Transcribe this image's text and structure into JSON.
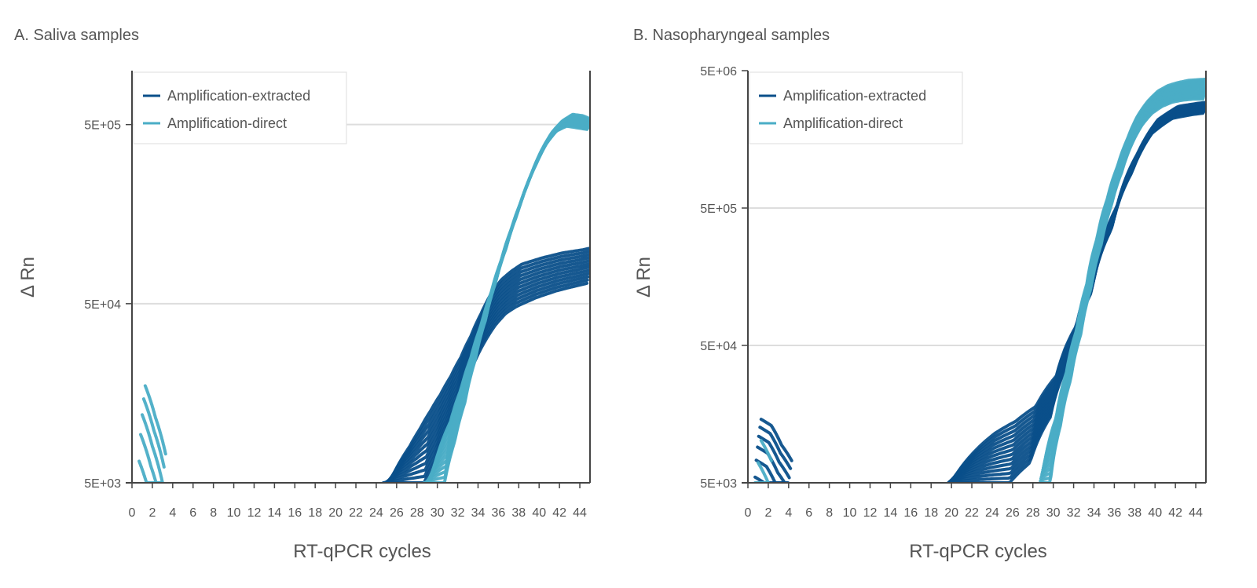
{
  "colors": {
    "extracted": "#0a4f8a",
    "direct": "#4aadc6",
    "grid": "#dddddd",
    "axis": "#444444",
    "legend_border": "#dddddd"
  },
  "chart_data": [
    {
      "type": "line",
      "title": "A. Saliva samples",
      "xlabel": "RT-qPCR cycles",
      "ylabel": "Δ Rn",
      "xlim": [
        0,
        45
      ],
      "ylim": [
        5000,
        1000000
      ],
      "yscale": "log",
      "xticks": [
        0,
        2,
        4,
        6,
        8,
        10,
        12,
        14,
        16,
        18,
        20,
        22,
        24,
        26,
        28,
        30,
        32,
        34,
        36,
        38,
        40,
        42,
        44
      ],
      "yticks": [
        5000,
        50000,
        500000
      ],
      "ytick_labels": [
        "5E+03",
        "5E+04",
        "5E+05"
      ],
      "grid": "horizontal",
      "legend": {
        "position": "top-left",
        "entries": [
          "Amplification-extracted",
          "Amplification-direct"
        ]
      },
      "series": [
        {
          "name": "Amplification-extracted",
          "color_key": "extracted",
          "count": 12,
          "x": [
            25,
            26,
            27,
            28,
            29,
            30,
            31,
            32,
            33,
            34,
            35,
            36,
            37,
            38,
            40,
            42,
            44,
            45
          ],
          "y": [
            5000,
            5600,
            6500,
            8000,
            10000,
            13000,
            17000,
            22000,
            29000,
            39000,
            50000,
            60000,
            68000,
            74000,
            80000,
            85000,
            89000,
            91000
          ],
          "y_min": [
            5000,
            5000,
            5000,
            5000,
            5000,
            6500,
            9000,
            12000,
            17000,
            24000,
            31000,
            38000,
            44000,
            48000,
            54000,
            59000,
            63000,
            65000
          ],
          "y_max": [
            5000,
            6500,
            8000,
            10000,
            12500,
            15500,
            19500,
            25000,
            33000,
            44000,
            57000,
            68000,
            76000,
            83000,
            90000,
            96000,
            100000,
            103000
          ]
        },
        {
          "name": "Amplification-direct",
          "color_key": "direct",
          "count": 12,
          "x": [
            29,
            30,
            31,
            32,
            33,
            34,
            35,
            36,
            37,
            38,
            39,
            40,
            41,
            42,
            43,
            44,
            45
          ],
          "y": [
            5000,
            6500,
            9500,
            14500,
            22000,
            34000,
            52000,
            80000,
            120000,
            175000,
            250000,
            340000,
            430000,
            500000,
            540000,
            530000,
            505000
          ],
          "y_min": [
            5000,
            5000,
            5000,
            8500,
            14000,
            24000,
            40000,
            65000,
            100000,
            150000,
            220000,
            300000,
            390000,
            460000,
            490000,
            480000,
            470000
          ],
          "y_max": [
            5000,
            8000,
            11000,
            16500,
            25000,
            38000,
            58000,
            88000,
            132000,
            190000,
            270000,
            365000,
            455000,
            525000,
            570000,
            560000,
            530000
          ]
        },
        {
          "name": "Amplification-direct (baseline)",
          "color_key": "direct",
          "count": 5,
          "legend": false,
          "x": [
            1,
            2,
            3
          ],
          "y": [
            12000,
            8000,
            5000
          ]
        }
      ]
    },
    {
      "type": "line",
      "title": "B. Nasopharyngeal samples",
      "xlabel": "RT-qPCR cycles",
      "ylabel": "Δ Rn",
      "xlim": [
        0,
        45
      ],
      "ylim": [
        5000,
        5000000
      ],
      "yscale": "log",
      "xticks": [
        0,
        2,
        4,
        6,
        8,
        10,
        12,
        14,
        16,
        18,
        20,
        22,
        24,
        26,
        28,
        30,
        32,
        34,
        36,
        38,
        40,
        42,
        44
      ],
      "yticks": [
        5000,
        50000,
        500000,
        5000000
      ],
      "ytick_labels": [
        "5E+03",
        "5E+04",
        "5E+05",
        "5E+06"
      ],
      "grid": "horizontal",
      "legend": {
        "position": "top-left",
        "entries": [
          "Amplification-extracted",
          "Amplification-direct"
        ]
      },
      "series": [
        {
          "name": "Amplification-extracted",
          "color_key": "extracted",
          "count": 14,
          "x": [
            20,
            22,
            24,
            26,
            28,
            30,
            32,
            34,
            36,
            38,
            40,
            42,
            44,
            45
          ],
          "y": [
            5000,
            7000,
            9000,
            11000,
            14000,
            25000,
            60000,
            160000,
            450000,
            1100000,
            2000000,
            2500000,
            2650000,
            2700000
          ],
          "y_min": [
            5000,
            5000,
            5000,
            5000,
            7000,
            15000,
            40000,
            120000,
            350000,
            900000,
            1750000,
            2250000,
            2400000,
            2450000
          ],
          "y_max": [
            5500,
            8500,
            11500,
            14000,
            18000,
            30000,
            70000,
            190000,
            520000,
            1250000,
            2200000,
            2750000,
            2900000,
            2950000
          ]
        },
        {
          "name": "Amplification-direct",
          "color_key": "direct",
          "count": 14,
          "x": [
            29,
            30,
            31,
            32,
            33,
            34,
            35,
            36,
            37,
            38,
            39,
            40,
            41,
            42,
            43,
            44,
            45
          ],
          "y": [
            5000,
            10000,
            22000,
            45000,
            95000,
            200000,
            400000,
            750000,
            1250000,
            1900000,
            2500000,
            3000000,
            3300000,
            3500000,
            3650000,
            3700000,
            3700000
          ],
          "y_min": [
            5000,
            5000,
            13000,
            28000,
            60000,
            130000,
            270000,
            520000,
            900000,
            1450000,
            2000000,
            2450000,
            2750000,
            2950000,
            3050000,
            3100000,
            3100000
          ],
          "y_max": [
            8000,
            15000,
            32000,
            65000,
            140000,
            300000,
            580000,
            1000000,
            1600000,
            2350000,
            3000000,
            3550000,
            3900000,
            4100000,
            4250000,
            4300000,
            4350000
          ]
        },
        {
          "name": "Amplification-extracted (baseline)",
          "color_key": "extracted",
          "count": 6,
          "legend": false,
          "x": [
            1,
            2,
            3,
            4
          ],
          "y": [
            10000,
            9000,
            6500,
            5000
          ]
        },
        {
          "name": "Amplification-direct (baseline)",
          "color_key": "direct",
          "count": 3,
          "legend": false,
          "x": [
            1,
            1.5,
            2
          ],
          "y": [
            7000,
            6000,
            5000
          ]
        }
      ]
    }
  ]
}
